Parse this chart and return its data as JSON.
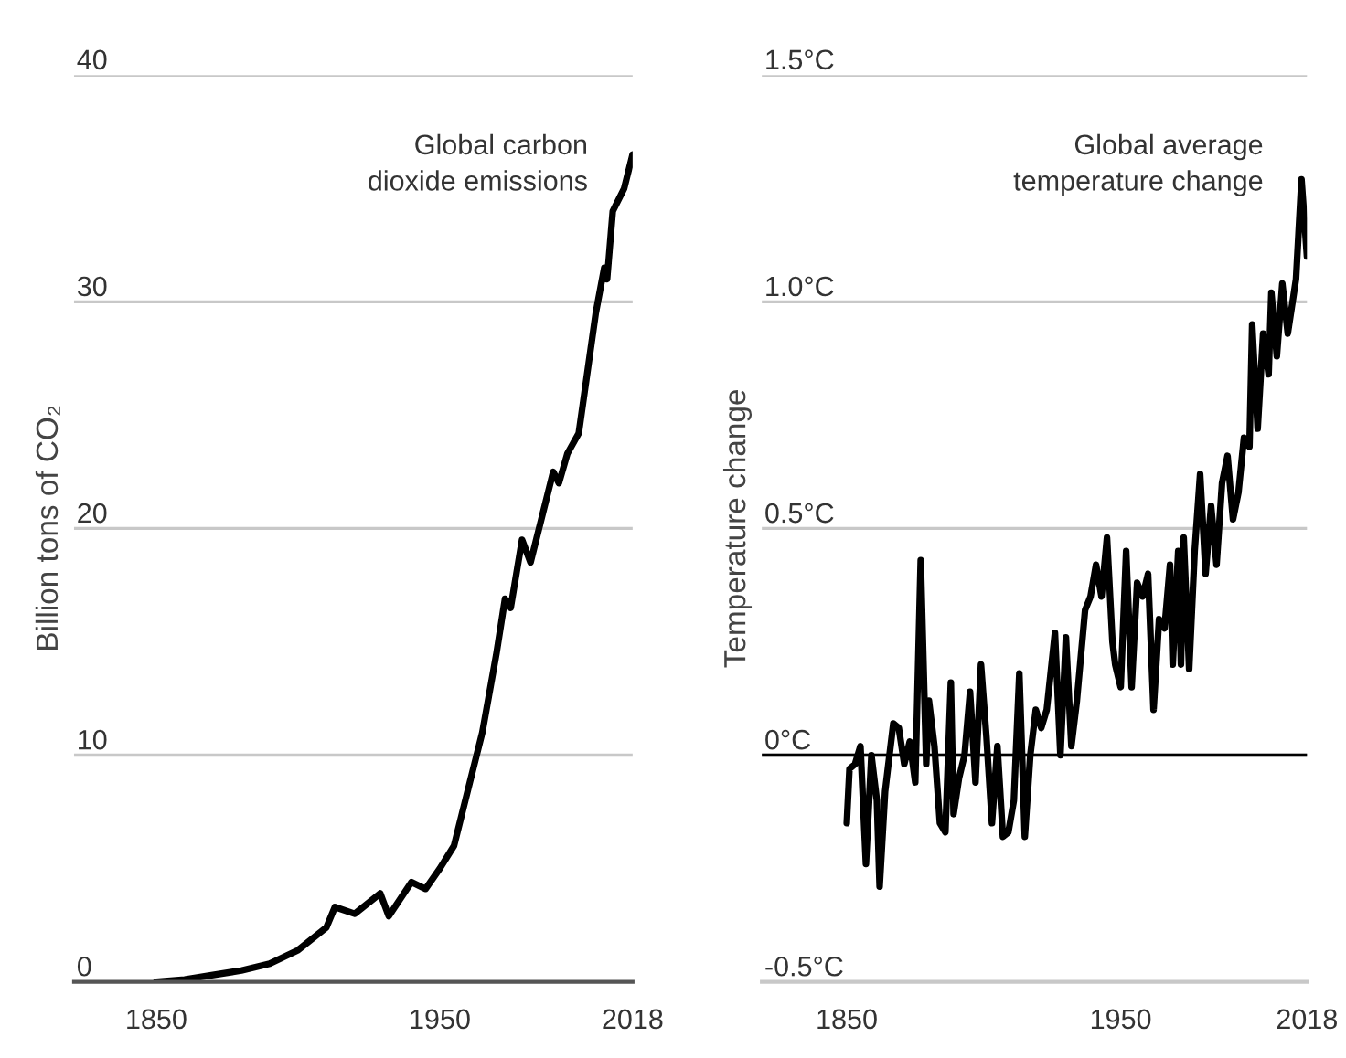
{
  "chart_data": [
    {
      "type": "line",
      "ylabel": "Billion tons of CO₂",
      "annotations": [
        "Global carbon\ndioxide emissions"
      ],
      "x": [
        1850,
        1860,
        1870,
        1880,
        1890,
        1900,
        1910,
        1913,
        1920,
        1929,
        1932,
        1940,
        1945,
        1950,
        1955,
        1960,
        1965,
        1970,
        1973,
        1975,
        1979,
        1982,
        1990,
        1992,
        1995,
        1999,
        2005,
        2008,
        2009,
        2011,
        2015,
        2018
      ],
      "series": [
        {
          "color": "#000000",
          "values": [
            0,
            0.1,
            0.3,
            0.5,
            0.8,
            1.4,
            2.4,
            3.3,
            3.0,
            3.9,
            2.9,
            4.4,
            4.1,
            5.0,
            6.0,
            8.5,
            11,
            14.5,
            16.9,
            16.5,
            19.5,
            18.5,
            22.5,
            22.0,
            23.3,
            24.2,
            29.5,
            31.5,
            31,
            34,
            35,
            36.5
          ]
        }
      ],
      "xlim": [
        1821,
        2018
      ],
      "xticks": [
        1850,
        1950,
        2018
      ],
      "ylim": [
        0,
        40
      ],
      "yticks": [
        0,
        10,
        20,
        30,
        40
      ],
      "grid": "y",
      "legend": false
    },
    {
      "type": "line",
      "ylabel": "Temperature change",
      "annotations": [
        "Global average\ntemperature change"
      ],
      "x": [
        1850,
        1851,
        1853,
        1855,
        1857,
        1859,
        1861,
        1862,
        1864,
        1867,
        1869,
        1871,
        1873,
        1875,
        1877,
        1879,
        1880,
        1882,
        1884,
        1886,
        1888,
        1889,
        1891,
        1893,
        1895,
        1897,
        1899,
        1901,
        1903,
        1905,
        1907,
        1909,
        1911,
        1913,
        1915,
        1917,
        1919,
        1921,
        1923,
        1926,
        1928,
        1930,
        1932,
        1934,
        1937,
        1939,
        1941,
        1943,
        1945,
        1947,
        1948,
        1950,
        1952,
        1954,
        1956,
        1958,
        1960,
        1962,
        1964,
        1966,
        1968,
        1969,
        1971,
        1972,
        1973,
        1975,
        1977,
        1979,
        1981,
        1983,
        1985,
        1987,
        1989,
        1991,
        1993,
        1995,
        1997,
        1998,
        2000,
        2002,
        2004,
        2005,
        2007,
        2009,
        2011,
        2014,
        2016,
        2018
      ],
      "series": [
        {
          "color": "#000000",
          "values": [
            -0.15,
            -0.03,
            -0.02,
            0.02,
            -0.24,
            0.0,
            -0.1,
            -0.29,
            -0.08,
            0.07,
            0.06,
            -0.02,
            0.03,
            -0.06,
            0.43,
            -0.02,
            0.12,
            0.02,
            -0.15,
            -0.17,
            0.16,
            -0.13,
            -0.05,
            0.0,
            0.14,
            -0.06,
            0.2,
            0.04,
            -0.15,
            0.02,
            -0.18,
            -0.17,
            -0.1,
            0.18,
            -0.18,
            0.0,
            0.1,
            0.06,
            0.1,
            0.27,
            0.0,
            0.26,
            0.02,
            0.12,
            0.32,
            0.35,
            0.42,
            0.35,
            0.48,
            0.25,
            0.2,
            0.15,
            0.45,
            0.15,
            0.38,
            0.35,
            0.4,
            0.1,
            0.3,
            0.28,
            0.42,
            0.2,
            0.45,
            0.2,
            0.48,
            0.19,
            0.45,
            0.62,
            0.4,
            0.55,
            0.42,
            0.6,
            0.66,
            0.52,
            0.58,
            0.7,
            0.68,
            0.95,
            0.72,
            0.93,
            0.84,
            1.02,
            0.88,
            1.04,
            0.93,
            1.05,
            1.27,
            1.1
          ]
        }
      ],
      "xlim": [
        1819,
        2018
      ],
      "xticks": [
        1850,
        1950,
        2018
      ],
      "ylim": [
        -0.5,
        1.5
      ],
      "yticks": [
        {
          "value": -0.5,
          "label": "-0.5°C"
        },
        {
          "value": 0,
          "label": "0°C"
        },
        {
          "value": 0.5,
          "label": "0.5°C"
        },
        {
          "value": 1.0,
          "label": "1.0°C"
        },
        {
          "value": 1.5,
          "label": "1.5°C"
        }
      ],
      "ref_lines": [
        {
          "axis": "y",
          "value": 0,
          "color": "#000000"
        }
      ],
      "grid": "y",
      "legend": false
    }
  ]
}
